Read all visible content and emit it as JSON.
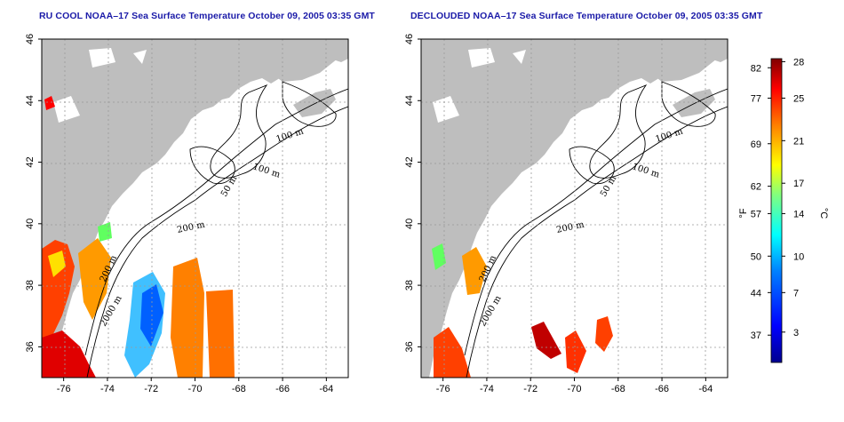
{
  "panels": [
    {
      "id": "left",
      "title": "RU COOL NOAA–17 Sea Surface Temperature October 09, 2005 03:35 GMT"
    },
    {
      "id": "right",
      "title": "DECLOUDED NOAA–17 Sea Surface Temperature October 09, 2005 03:35 GMT"
    }
  ],
  "map": {
    "lon_range": [
      -77,
      -63
    ],
    "lat_range": [
      35,
      46
    ],
    "lon_ticks": [
      "-76",
      "-74",
      "-72",
      "-70",
      "-68",
      "-66",
      "-64"
    ],
    "lat_ticks": [
      "36",
      "38",
      "40",
      "42",
      "44",
      "46"
    ],
    "grid": true,
    "land_color": "#bebebe",
    "contour_labels": [
      "100 m",
      "100 m",
      "50 m",
      "200 m",
      "200 m",
      "2000 m"
    ]
  },
  "colorbar": {
    "fahrenheit_label": "°F",
    "celsius_label": "°C",
    "fahrenheit_ticks": [
      "82",
      "77",
      "69",
      "62",
      "57",
      "50",
      "44",
      "37"
    ],
    "celsius_ticks": [
      "28",
      "25",
      "21",
      "17",
      "14",
      "10",
      "7",
      "3"
    ],
    "colors": [
      "#00008f",
      "#0000ff",
      "#0080ff",
      "#00ffff",
      "#80ff80",
      "#ffff00",
      "#ff8000",
      "#ff0000",
      "#800000"
    ]
  }
}
